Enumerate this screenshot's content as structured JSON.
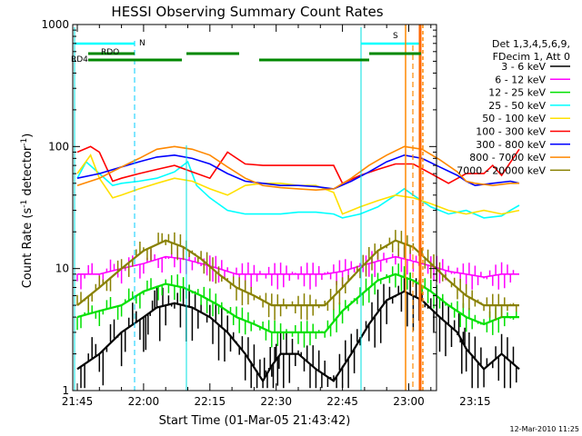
{
  "chart_data": {
    "type": "line",
    "title": "HESSI Observing Summary Count Rates",
    "xlabel": "Start Time (01-Mar-05 21:43:42)",
    "ylabel_parts": [
      "Count Rate (s",
      "-1",
      " detector",
      "-1",
      ")"
    ],
    "x_units": "minutes after 21:45 UT",
    "xlim": [
      0,
      101
    ],
    "ylim": [
      1,
      1000
    ],
    "yscale": "log",
    "x_tick_labels": [
      "21:45",
      "22:00",
      "22:15",
      "22:30",
      "22:45",
      "23:00",
      "23:15"
    ],
    "y_tick_labels": [
      "1",
      "10",
      "100",
      "1000"
    ],
    "legend_header": [
      "Det 1,3,4,5,6,9,",
      "FDecim 1, Att 0"
    ],
    "legend_position": "right",
    "series": [
      {
        "name": "3 - 6 keV",
        "color": "#000000",
        "points": [
          [
            0,
            1.5
          ],
          [
            5,
            2
          ],
          [
            10,
            3
          ],
          [
            15,
            4
          ],
          [
            18,
            4.8
          ],
          [
            22,
            5.2
          ],
          [
            26,
            4.8
          ],
          [
            30,
            4
          ],
          [
            34,
            3
          ],
          [
            38,
            2
          ],
          [
            42,
            1.2
          ],
          [
            44,
            1.6
          ],
          [
            46,
            2
          ],
          [
            50,
            2
          ],
          [
            54,
            1.5
          ],
          [
            58,
            1.2
          ],
          [
            62,
            2
          ],
          [
            66,
            3.5
          ],
          [
            70,
            5.5
          ],
          [
            74,
            6.5
          ],
          [
            78,
            5.5
          ],
          [
            82,
            4
          ],
          [
            86,
            3
          ],
          [
            88,
            2.2
          ],
          [
            92,
            1.5
          ],
          [
            96,
            2
          ],
          [
            100,
            1.5
          ]
        ]
      },
      {
        "name": "6 - 12 keV",
        "color": "#ff00ff",
        "points": [
          [
            0,
            9
          ],
          [
            5,
            9
          ],
          [
            10,
            10
          ],
          [
            15,
            11
          ],
          [
            20,
            12.5
          ],
          [
            24,
            12
          ],
          [
            28,
            11
          ],
          [
            32,
            10
          ],
          [
            36,
            9
          ],
          [
            40,
            9
          ],
          [
            44,
            9
          ],
          [
            48,
            9
          ],
          [
            52,
            9
          ],
          [
            56,
            9
          ],
          [
            60,
            9.5
          ],
          [
            64,
            10.5
          ],
          [
            68,
            11.5
          ],
          [
            72,
            12.5
          ],
          [
            76,
            11.5
          ],
          [
            80,
            10.5
          ],
          [
            84,
            9.5
          ],
          [
            88,
            9
          ],
          [
            92,
            8.5
          ],
          [
            96,
            9
          ],
          [
            100,
            9
          ]
        ]
      },
      {
        "name": "12 - 25 keV",
        "color": "#00e000",
        "points": [
          [
            0,
            4
          ],
          [
            5,
            4.5
          ],
          [
            10,
            5
          ],
          [
            15,
            6.5
          ],
          [
            20,
            7.5
          ],
          [
            24,
            7
          ],
          [
            28,
            6
          ],
          [
            32,
            5
          ],
          [
            36,
            4
          ],
          [
            40,
            3.5
          ],
          [
            44,
            3
          ],
          [
            48,
            3
          ],
          [
            52,
            3
          ],
          [
            56,
            3
          ],
          [
            60,
            4.5
          ],
          [
            64,
            6
          ],
          [
            68,
            8
          ],
          [
            72,
            9
          ],
          [
            76,
            8
          ],
          [
            80,
            6.5
          ],
          [
            84,
            5
          ],
          [
            88,
            4
          ],
          [
            92,
            3.5
          ],
          [
            96,
            4
          ],
          [
            100,
            4
          ]
        ]
      },
      {
        "name": "25 - 50 keV",
        "color": "#00ffff",
        "points": [
          [
            0,
            55
          ],
          [
            2,
            75
          ],
          [
            5,
            60
          ],
          [
            8,
            48
          ],
          [
            10,
            50
          ],
          [
            14,
            52
          ],
          [
            18,
            55
          ],
          [
            22,
            62
          ],
          [
            25,
            75
          ],
          [
            27,
            48
          ],
          [
            30,
            38
          ],
          [
            34,
            30
          ],
          [
            38,
            28
          ],
          [
            42,
            28
          ],
          [
            46,
            28
          ],
          [
            50,
            29
          ],
          [
            54,
            29
          ],
          [
            58,
            28
          ],
          [
            60,
            26
          ],
          [
            64,
            28
          ],
          [
            68,
            32
          ],
          [
            72,
            40
          ],
          [
            74,
            45
          ],
          [
            76,
            40
          ],
          [
            80,
            32
          ],
          [
            84,
            28
          ],
          [
            88,
            30
          ],
          [
            92,
            26
          ],
          [
            96,
            27
          ],
          [
            98,
            30
          ],
          [
            100,
            33
          ]
        ]
      },
      {
        "name": "50 - 100 keV",
        "color": "#ffe000",
        "points": [
          [
            0,
            60
          ],
          [
            3,
            85
          ],
          [
            5,
            55
          ],
          [
            8,
            38
          ],
          [
            10,
            40
          ],
          [
            14,
            45
          ],
          [
            18,
            50
          ],
          [
            22,
            55
          ],
          [
            26,
            52
          ],
          [
            30,
            45
          ],
          [
            34,
            40
          ],
          [
            38,
            48
          ],
          [
            42,
            50
          ],
          [
            46,
            50
          ],
          [
            50,
            48
          ],
          [
            54,
            48
          ],
          [
            58,
            42
          ],
          [
            60,
            28
          ],
          [
            64,
            32
          ],
          [
            68,
            36
          ],
          [
            72,
            40
          ],
          [
            76,
            38
          ],
          [
            80,
            34
          ],
          [
            84,
            30
          ],
          [
            88,
            28
          ],
          [
            92,
            30
          ],
          [
            96,
            28
          ],
          [
            100,
            30
          ]
        ]
      },
      {
        "name": "100 - 300 keV",
        "color": "#ff0000",
        "points": [
          [
            0,
            90
          ],
          [
            3,
            100
          ],
          [
            5,
            90
          ],
          [
            8,
            52
          ],
          [
            10,
            55
          ],
          [
            14,
            60
          ],
          [
            18,
            65
          ],
          [
            22,
            70
          ],
          [
            26,
            62
          ],
          [
            30,
            55
          ],
          [
            34,
            90
          ],
          [
            38,
            72
          ],
          [
            42,
            70
          ],
          [
            46,
            70
          ],
          [
            50,
            70
          ],
          [
            54,
            70
          ],
          [
            58,
            70
          ],
          [
            60,
            50
          ],
          [
            64,
            58
          ],
          [
            68,
            65
          ],
          [
            72,
            72
          ],
          [
            76,
            72
          ],
          [
            80,
            60
          ],
          [
            84,
            50
          ],
          [
            88,
            60
          ],
          [
            92,
            60
          ],
          [
            94,
            70
          ],
          [
            96,
            58
          ],
          [
            100,
            95
          ]
        ]
      },
      {
        "name": "300 - 800 keV",
        "color": "#0000ff",
        "points": [
          [
            0,
            55
          ],
          [
            5,
            60
          ],
          [
            10,
            68
          ],
          [
            14,
            75
          ],
          [
            18,
            82
          ],
          [
            22,
            85
          ],
          [
            26,
            80
          ],
          [
            30,
            72
          ],
          [
            34,
            60
          ],
          [
            38,
            52
          ],
          [
            42,
            50
          ],
          [
            46,
            48
          ],
          [
            50,
            48
          ],
          [
            54,
            47
          ],
          [
            58,
            45
          ],
          [
            62,
            52
          ],
          [
            66,
            62
          ],
          [
            70,
            75
          ],
          [
            74,
            85
          ],
          [
            78,
            80
          ],
          [
            82,
            68
          ],
          [
            86,
            58
          ],
          [
            88,
            52
          ],
          [
            90,
            48
          ],
          [
            94,
            50
          ],
          [
            98,
            52
          ],
          [
            100,
            50
          ]
        ]
      },
      {
        "name": "800 - 7000 keV",
        "color": "#ff8800",
        "points": [
          [
            0,
            48
          ],
          [
            5,
            55
          ],
          [
            10,
            68
          ],
          [
            14,
            80
          ],
          [
            18,
            95
          ],
          [
            22,
            100
          ],
          [
            26,
            95
          ],
          [
            30,
            85
          ],
          [
            34,
            68
          ],
          [
            38,
            55
          ],
          [
            42,
            48
          ],
          [
            46,
            46
          ],
          [
            50,
            45
          ],
          [
            54,
            44
          ],
          [
            58,
            45
          ],
          [
            62,
            55
          ],
          [
            66,
            70
          ],
          [
            70,
            85
          ],
          [
            74,
            100
          ],
          [
            78,
            95
          ],
          [
            82,
            78
          ],
          [
            86,
            62
          ],
          [
            88,
            52
          ],
          [
            90,
            50
          ],
          [
            94,
            48
          ],
          [
            98,
            50
          ],
          [
            100,
            50
          ]
        ]
      },
      {
        "name": "7000 - 20000 keV",
        "color": "#888000",
        "points": [
          [
            0,
            5
          ],
          [
            5,
            7
          ],
          [
            10,
            10
          ],
          [
            15,
            14
          ],
          [
            20,
            17
          ],
          [
            24,
            15
          ],
          [
            28,
            12
          ],
          [
            32,
            9
          ],
          [
            36,
            7
          ],
          [
            40,
            6
          ],
          [
            44,
            5
          ],
          [
            48,
            5
          ],
          [
            52,
            5
          ],
          [
            56,
            5
          ],
          [
            60,
            7
          ],
          [
            64,
            10
          ],
          [
            68,
            14
          ],
          [
            72,
            17
          ],
          [
            76,
            15
          ],
          [
            80,
            11
          ],
          [
            84,
            8
          ],
          [
            88,
            6
          ],
          [
            92,
            5
          ],
          [
            96,
            5
          ],
          [
            100,
            5
          ]
        ]
      }
    ],
    "annotations": {
      "night_label": "N",
      "saa_label": "S",
      "rdo_label": "RDO",
      "rd4_label": "RD4",
      "date_stamp": "12-Mar-2010 11:25"
    }
  }
}
